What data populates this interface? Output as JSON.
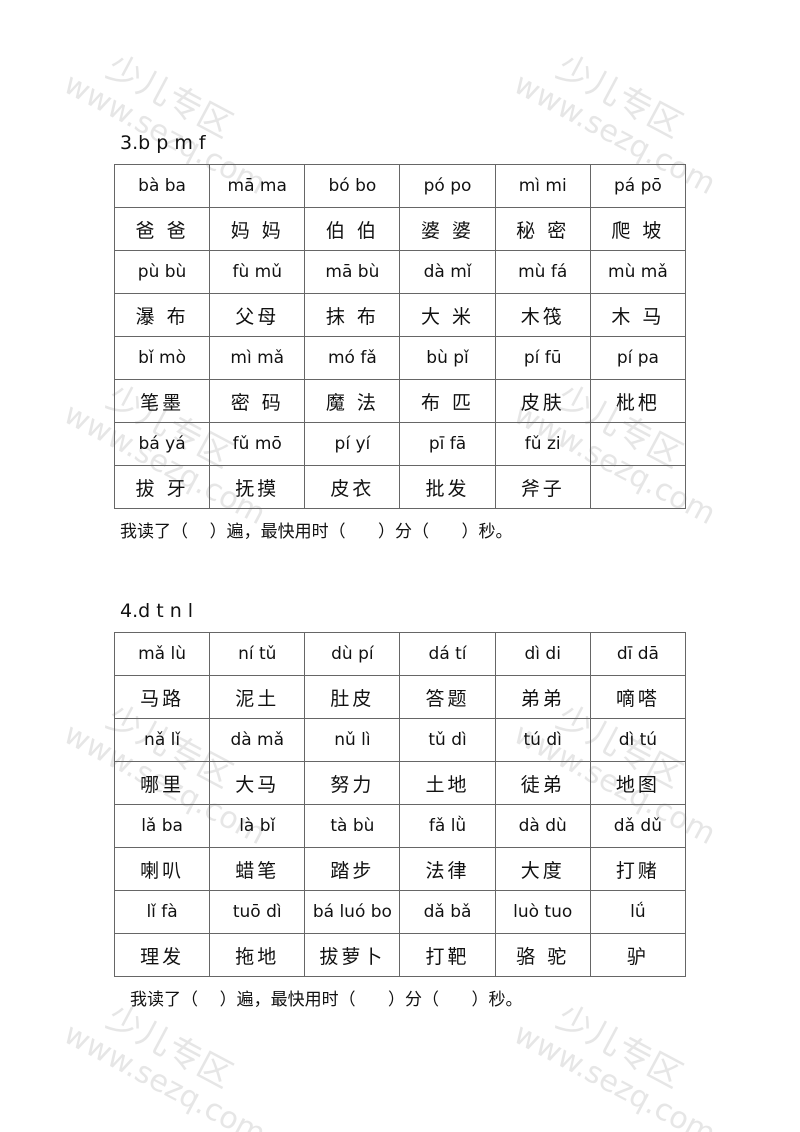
{
  "watermark": {
    "text": "少儿专区",
    "url": "www.sezq.com"
  },
  "sections": [
    {
      "title": "3.b p m f",
      "rows": [
        [
          "bà ba",
          "mā  ma",
          "bó bo",
          "pó po",
          "mì mi",
          "pá pō"
        ],
        [
          "爸 爸",
          "妈 妈",
          "伯 伯",
          "婆 婆",
          "秘 密",
          "爬 坡"
        ],
        [
          "pù bù",
          "fù mǔ",
          "mā bù",
          "dà mǐ",
          "mù fá",
          "mù mǎ"
        ],
        [
          "瀑 布",
          "父母",
          "抹 布",
          "大 米",
          "木筏",
          "木 马"
        ],
        [
          "bǐ mò",
          "mì mǎ",
          "mó fǎ",
          "bù pǐ",
          "pí fū",
          "pí pa"
        ],
        [
          "笔墨",
          "密 码",
          "魔 法",
          "布 匹",
          "皮肤",
          "枇杷"
        ],
        [
          "bá yá",
          "fǔ mō",
          "pí yí",
          "pī fā",
          "fǔ zi",
          ""
        ],
        [
          "拔 牙",
          "抚摸",
          "皮衣",
          "批发",
          "斧子",
          ""
        ]
      ],
      "footer": "我读了（    ）遍，最快用时（      ）分（      ）秒。"
    },
    {
      "title": "4.d t n l",
      "rows": [
        [
          "mǎ lù",
          "ní tǔ",
          "dù pí",
          "dá tí",
          "dì di",
          "dī dā"
        ],
        [
          "马路",
          "泥土",
          "肚皮",
          "答题",
          "弟弟",
          "嘀嗒"
        ],
        [
          "nǎ lǐ",
          "dà mǎ",
          "nǔ lì",
          "tǔ dì",
          "tú dì",
          "dì tú"
        ],
        [
          "哪里",
          "大马",
          "努力",
          "土地",
          "徒弟",
          "地图"
        ],
        [
          "lǎ ba",
          "là bǐ",
          "tà bù",
          "fǎ lǜ",
          "dà dù",
          "dǎ dǔ"
        ],
        [
          "喇叭",
          "蜡笔",
          "踏步",
          "法律",
          "大度",
          "打赌"
        ],
        [
          "lǐ fà",
          "tuō dì",
          "bá luó bo",
          "dǎ bǎ",
          "luò tuo",
          "lǘ"
        ],
        [
          "理发",
          "拖地",
          "拔萝卜",
          "打靶",
          "骆 驼",
          "驴"
        ]
      ],
      "footer": "我读了（    ）遍，最快用时（      ）分（      ）秒。"
    }
  ]
}
